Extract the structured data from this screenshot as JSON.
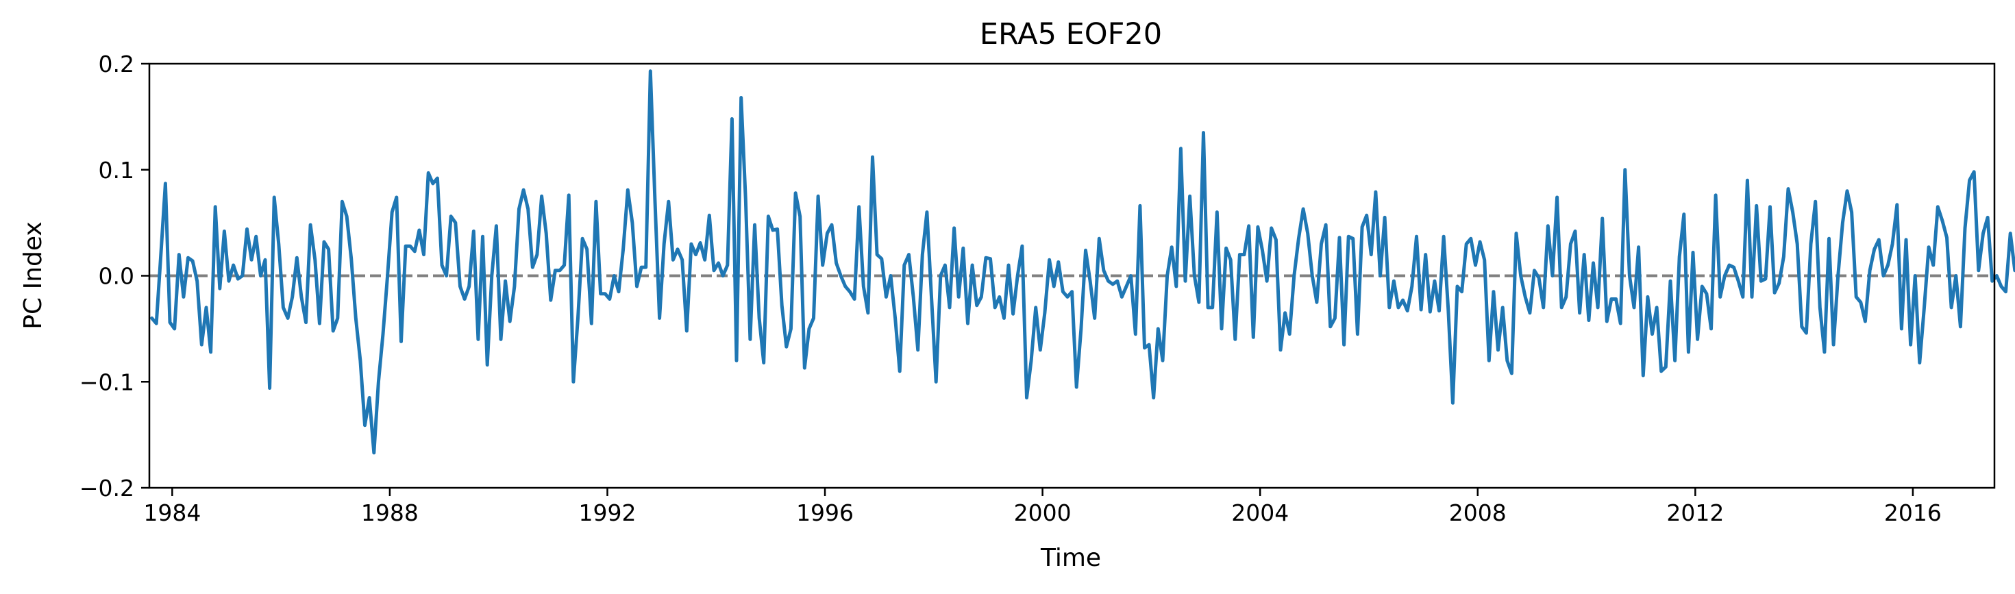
{
  "chart_data": {
    "type": "line",
    "title": "ERA5  EOF20",
    "xlabel": "Time",
    "ylabel": "PC Index",
    "xlim": [
      1983.58,
      2017.5
    ],
    "ylim": [
      -0.2,
      0.2
    ],
    "x_ticks": [
      1984,
      1988,
      1992,
      1996,
      2000,
      2004,
      2008,
      2012,
      2016
    ],
    "x_tick_labels": [
      "1984",
      "1988",
      "1992",
      "1996",
      "2000",
      "2004",
      "2008",
      "2012",
      "2016"
    ],
    "y_ticks": [
      -0.2,
      -0.1,
      0.0,
      0.1,
      0.2
    ],
    "y_tick_labels": [
      "−0.2",
      "−0.1",
      "0.0",
      "0.1",
      "0.2"
    ],
    "grid": false,
    "legend": "none",
    "x_start": 1983.625,
    "x_step": 0.08333333,
    "colors": {
      "series": "#1f77b4",
      "zero_line": "#808080"
    },
    "reference_line": {
      "y": 0.0,
      "style": "dashed"
    },
    "series": [
      {
        "values": [
          -0.04,
          -0.045,
          0.02,
          0.087,
          -0.044,
          -0.05,
          0.02,
          -0.02,
          0.017,
          0.014,
          -0.005,
          -0.065,
          -0.03,
          -0.072,
          0.065,
          -0.012,
          0.042,
          -0.005,
          0.01,
          -0.003,
          0.0,
          0.044,
          0.015,
          0.037,
          0.0,
          0.015,
          -0.106,
          0.074,
          0.03,
          -0.03,
          -0.04,
          -0.02,
          0.017,
          -0.02,
          -0.044,
          0.048,
          0.015,
          -0.045,
          0.032,
          0.025,
          -0.052,
          -0.04,
          0.07,
          0.056,
          0.016,
          -0.04,
          -0.08,
          -0.141,
          -0.115,
          -0.167,
          -0.1,
          -0.055,
          0.0,
          0.06,
          0.074,
          -0.062,
          0.028,
          0.028,
          0.023,
          0.043,
          0.02,
          0.097,
          0.087,
          0.092,
          0.01,
          0.0,
          0.056,
          0.05,
          -0.01,
          -0.022,
          -0.01,
          0.042,
          -0.06,
          0.037,
          -0.084,
          0.0,
          0.047,
          -0.06,
          -0.005,
          -0.043,
          -0.01,
          0.063,
          0.081,
          0.063,
          0.008,
          0.02,
          0.075,
          0.04,
          -0.023,
          0.005,
          0.005,
          0.01,
          0.076,
          -0.1,
          -0.04,
          0.035,
          0.025,
          -0.045,
          0.07,
          -0.017,
          -0.017,
          -0.022,
          0.0,
          -0.015,
          0.025,
          0.081,
          0.05,
          -0.01,
          0.008,
          0.008,
          0.193,
          0.07,
          -0.04,
          0.03,
          0.07,
          0.015,
          0.025,
          0.015,
          -0.052,
          0.03,
          0.02,
          0.031,
          0.015,
          0.057,
          0.005,
          0.012,
          0.0,
          0.01,
          0.148,
          -0.08,
          0.168,
          0.072,
          -0.06,
          0.048,
          -0.04,
          -0.082,
          0.056,
          0.043,
          0.044,
          -0.028,
          -0.067,
          -0.05,
          0.078,
          0.056,
          -0.087,
          -0.05,
          -0.04,
          0.075,
          0.01,
          0.04,
          0.048,
          0.012,
          0.0,
          -0.01,
          -0.015,
          -0.022,
          0.065,
          -0.01,
          -0.035,
          0.112,
          0.02,
          0.016,
          -0.02,
          0.0,
          -0.04,
          -0.09,
          0.01,
          0.02,
          -0.02,
          -0.07,
          0.02,
          0.06,
          -0.02,
          -0.1,
          0.0,
          0.01,
          -0.03,
          0.045,
          -0.02,
          0.026,
          -0.045,
          0.01,
          -0.028,
          -0.02,
          0.017,
          0.016,
          -0.03,
          -0.02,
          -0.04,
          0.01,
          -0.036,
          0.0,
          0.028,
          -0.115,
          -0.08,
          -0.03,
          -0.07,
          -0.035,
          0.015,
          -0.01,
          0.013,
          -0.015,
          -0.02,
          -0.015,
          -0.105,
          -0.05,
          0.024,
          -0.005,
          -0.04,
          0.035,
          0.005,
          -0.005,
          -0.008,
          -0.005,
          -0.02,
          -0.01,
          0.0,
          -0.055,
          0.066,
          -0.068,
          -0.065,
          -0.115,
          -0.05,
          -0.08,
          0.0,
          0.027,
          -0.01,
          0.12,
          -0.005,
          0.075,
          0.0,
          -0.025,
          0.135,
          -0.03,
          -0.03,
          0.06,
          -0.05,
          0.026,
          0.015,
          -0.06,
          0.02,
          0.02,
          0.047,
          -0.058,
          0.046,
          0.024,
          -0.005,
          0.045,
          0.034,
          -0.07,
          -0.035,
          -0.055,
          0.0,
          0.035,
          0.063,
          0.04,
          0.0,
          -0.025,
          0.03,
          0.048,
          -0.048,
          -0.04,
          0.036,
          -0.065,
          0.037,
          0.035,
          -0.055,
          0.046,
          0.057,
          0.02,
          0.079,
          0.0,
          0.055,
          -0.03,
          -0.005,
          -0.03,
          -0.023,
          -0.033,
          -0.01,
          0.037,
          -0.032,
          0.02,
          -0.034,
          -0.005,
          -0.033,
          0.037,
          -0.032,
          -0.12,
          -0.01,
          -0.015,
          0.03,
          0.035,
          0.01,
          0.032,
          0.015,
          -0.08,
          -0.015,
          -0.07,
          -0.03,
          -0.08,
          -0.092,
          0.04,
          0.0,
          -0.02,
          -0.035,
          0.005,
          -0.002,
          -0.03,
          0.047,
          0.0,
          0.074,
          -0.03,
          -0.02,
          0.03,
          0.042,
          -0.035,
          0.02,
          -0.042,
          0.012,
          -0.03,
          0.054,
          -0.043,
          -0.022,
          -0.022,
          -0.045,
          0.1,
          0.0,
          -0.03,
          0.027,
          -0.094,
          -0.02,
          -0.055,
          -0.03,
          -0.09,
          -0.086,
          -0.005,
          -0.08,
          0.018,
          0.058,
          -0.072,
          0.022,
          -0.06,
          -0.01,
          -0.017,
          -0.05,
          0.076,
          -0.02,
          0.0,
          0.01,
          0.008,
          -0.005,
          -0.02,
          0.09,
          -0.02,
          0.066,
          -0.005,
          -0.003,
          0.065,
          -0.016,
          -0.007,
          0.018,
          0.082,
          0.06,
          0.03,
          -0.048,
          -0.054,
          0.03,
          0.07,
          -0.03,
          -0.072,
          0.035,
          -0.065,
          0.0,
          0.05,
          0.08,
          0.06,
          -0.02,
          -0.025,
          -0.043,
          0.005,
          0.025,
          0.034,
          0.0,
          0.01,
          0.03,
          0.067,
          -0.05,
          0.034,
          -0.065,
          0.0,
          -0.082,
          -0.03,
          0.027,
          0.01,
          0.065,
          0.052,
          0.036,
          -0.03,
          0.0,
          -0.048,
          0.045,
          0.09,
          0.098,
          0.005,
          0.04,
          0.055,
          -0.005,
          0.0,
          -0.01,
          -0.015,
          0.04,
          0.005
        ]
      }
    ]
  }
}
